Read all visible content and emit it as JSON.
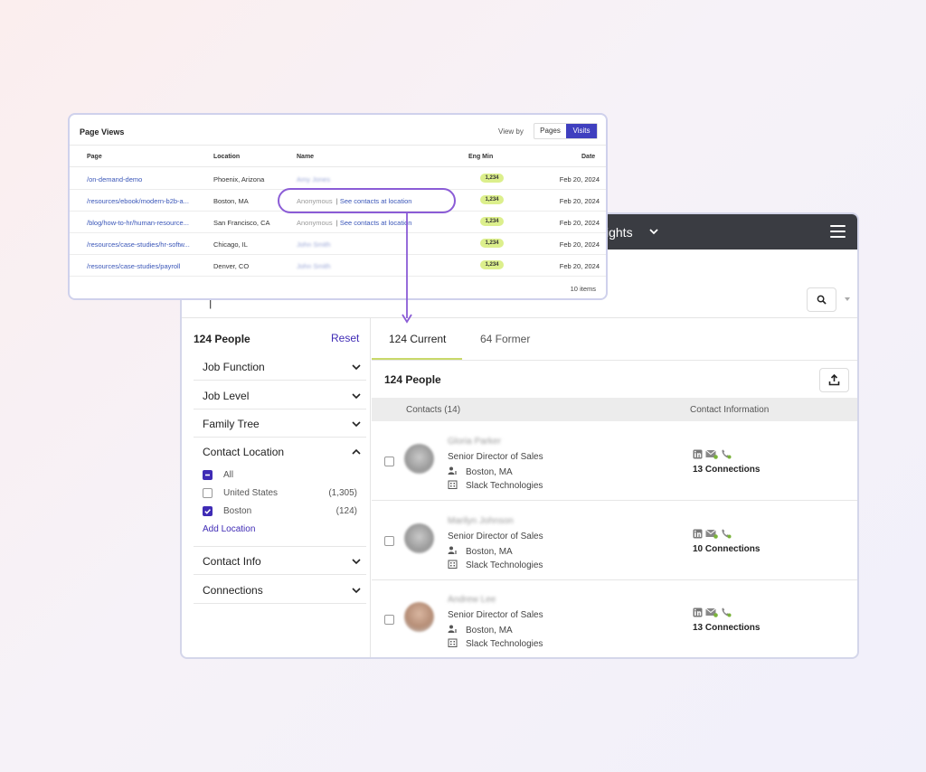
{
  "app": {
    "topbar_label": "sights",
    "sidebar": {
      "count": "124 People",
      "reset": "Reset",
      "facets": [
        "Job Function",
        "Job Level",
        "Family Tree"
      ],
      "contact_location": {
        "label": "Contact Location",
        "options": [
          {
            "label": "All",
            "count": "",
            "state": "partial"
          },
          {
            "label": "United States",
            "count": "(1,305)",
            "state": "off"
          },
          {
            "label": "Boston",
            "count": "(124)",
            "state": "on"
          }
        ],
        "add_location": "Add Location"
      },
      "facets_bottom": [
        "Contact Info",
        "Connections"
      ]
    },
    "tabs": {
      "current": "124 Current",
      "former": "64 Former"
    },
    "people_count": "124 People",
    "table_header": {
      "contacts": "Contacts (14)",
      "contact_info": "Contact Information"
    },
    "people": [
      {
        "name": "Gloria Parker",
        "title": "Senior Director of Sales",
        "location": "Boston, MA",
        "company": "Slack Technologies",
        "connections": "13 Connections"
      },
      {
        "name": "Marilyn Johnson",
        "title": "Senior Director of Sales",
        "location": "Boston, MA",
        "company": "Slack Technologies",
        "connections": "10 Connections"
      },
      {
        "name": "Andrew Lee",
        "title": "Senior Director of Sales",
        "location": "Boston, MA",
        "company": "Slack Technologies",
        "connections": "13 Connections"
      }
    ]
  },
  "page_views": {
    "title": "Page Views",
    "view_by": "View by",
    "toggle": {
      "pages": "Pages",
      "visits": "Visits",
      "selected": "Visits"
    },
    "columns": {
      "page": "Page",
      "location": "Location",
      "name": "Name",
      "eng_min": "Eng Min",
      "date": "Date"
    },
    "rows": [
      {
        "page": "/on-demand-demo",
        "location": "Phoenix, Arizona",
        "name": "Amy Jones",
        "anonymous": false,
        "eng": "1,234",
        "date": "Feb 20, 2024"
      },
      {
        "page": "/resources/ebook/modern-b2b-a...",
        "location": "Boston, MA",
        "name": "Anonymous",
        "anonymous": true,
        "link": "See contacts at location",
        "eng": "1,234",
        "date": "Feb 20, 2024"
      },
      {
        "page": "/blog/how-to-hr/human-resource...",
        "location": "San Francisco, CA",
        "name": "Anonymous",
        "anonymous": true,
        "link": "See contacts at location",
        "eng": "1,234",
        "date": "Feb 20, 2024"
      },
      {
        "page": "/resources/case-studies/hr-softw...",
        "location": "Chicago, IL",
        "name": "John Smith",
        "anonymous": false,
        "eng": "1,234",
        "date": "Feb 20, 2024"
      },
      {
        "page": "/resources/case-studies/payroll",
        "location": "Denver, CO",
        "name": "John Smith",
        "anonymous": false,
        "eng": "1,234",
        "date": "Feb 20, 2024"
      }
    ],
    "items": "10 items"
  },
  "colors": {
    "accent": "#3f2bb5",
    "highlight": "#8b5cd6",
    "badge": "#dcef8c",
    "topbar": "#3a3c42"
  }
}
